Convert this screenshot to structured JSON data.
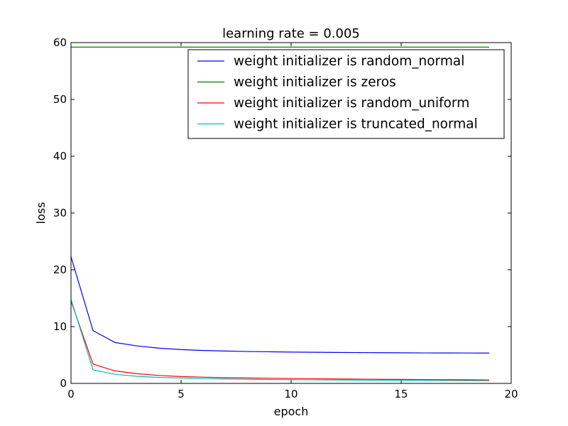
{
  "chart_data": {
    "type": "line",
    "title": "learning rate = 0.005",
    "xlabel": "epoch",
    "ylabel": "loss",
    "xlim": [
      0,
      20
    ],
    "ylim": [
      0,
      60
    ],
    "xticks": [
      0,
      5,
      10,
      15,
      20
    ],
    "yticks": [
      0,
      10,
      20,
      30,
      40,
      50,
      60
    ],
    "grid": false,
    "legend_position": "top-right",
    "x": [
      0,
      1,
      2,
      3,
      4,
      5,
      6,
      7,
      8,
      9,
      10,
      11,
      12,
      13,
      14,
      15,
      16,
      17,
      18,
      19
    ],
    "series": [
      {
        "name": "weight initializer is random_normal",
        "color": "#0000ff",
        "values": [
          22.3,
          9.3,
          7.2,
          6.6,
          6.2,
          5.95,
          5.8,
          5.7,
          5.62,
          5.57,
          5.52,
          5.48,
          5.45,
          5.43,
          5.41,
          5.39,
          5.37,
          5.36,
          5.35,
          5.34
        ]
      },
      {
        "name": "weight initializer is zeros",
        "color": "#008000",
        "values": [
          59.2,
          59.2,
          59.2,
          59.2,
          59.2,
          59.2,
          59.2,
          59.2,
          59.2,
          59.2,
          59.2,
          59.2,
          59.2,
          59.2,
          59.2,
          59.2,
          59.2,
          59.2,
          59.2,
          59.2
        ]
      },
      {
        "name": "weight initializer is random_uniform",
        "color": "#ff0000",
        "values": [
          14.5,
          3.4,
          2.2,
          1.7,
          1.4,
          1.2,
          1.1,
          1.0,
          0.95,
          0.9,
          0.85,
          0.82,
          0.78,
          0.75,
          0.72,
          0.7,
          0.68,
          0.66,
          0.64,
          0.62
        ]
      },
      {
        "name": "weight initializer is truncated_normal",
        "color": "#00bfbf",
        "values": [
          14.8,
          2.4,
          1.6,
          1.25,
          1.05,
          0.95,
          0.85,
          0.78,
          0.72,
          0.68,
          0.65,
          0.62,
          0.6,
          0.58,
          0.56,
          0.54,
          0.52,
          0.5,
          0.48,
          0.46
        ]
      }
    ]
  }
}
